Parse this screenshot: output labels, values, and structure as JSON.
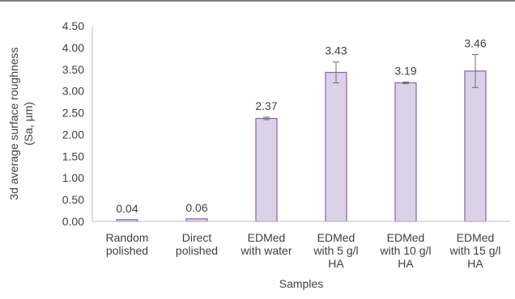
{
  "chart_data": {
    "type": "bar",
    "xlabel": "Samples",
    "ylabel_lines": [
      "3d average surface roughness",
      "(Sa, µm)"
    ],
    "ylim": [
      0,
      4.5
    ],
    "ytick_step": 0.5,
    "yticks": [
      "0.00",
      "0.50",
      "1.00",
      "1.50",
      "2.00",
      "2.50",
      "3.00",
      "3.50",
      "4.00",
      "4.50"
    ],
    "grid": false,
    "legend": "none",
    "categories": [
      [
        "Random",
        "polished"
      ],
      [
        "Direct",
        "polished"
      ],
      [
        "EDMed",
        "with water"
      ],
      [
        "EDMed",
        "with 5 g/l",
        "HA"
      ],
      [
        "EDMed",
        "with 10 g/l",
        "HA"
      ],
      [
        "EDMed",
        "with 15 g/l",
        "HA"
      ]
    ],
    "values": [
      0.04,
      0.06,
      2.37,
      3.43,
      3.19,
      3.46
    ],
    "data_labels": [
      "0.04",
      "0.06",
      "2.37",
      "3.43",
      "3.19",
      "3.46"
    ],
    "errors": [
      0.0,
      0.0,
      0.03,
      0.24,
      0.02,
      0.38
    ],
    "colors": {
      "bar_fill": "#dcd2e8",
      "bar_stroke": "#8a5fb0",
      "axis": "#bfbfbf",
      "error_bar": "#707070",
      "text": "#404040"
    }
  }
}
